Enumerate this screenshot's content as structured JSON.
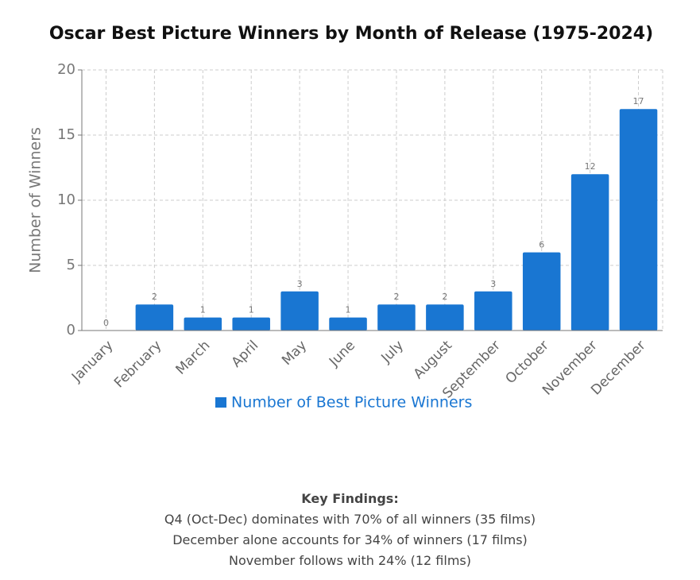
{
  "chart_data": {
    "type": "bar",
    "title": "Oscar Best Picture Winners by Month of Release (1975-2024)",
    "ylabel": "Number of Winners",
    "categories": [
      "January",
      "February",
      "March",
      "April",
      "May",
      "June",
      "July",
      "August",
      "September",
      "October",
      "November",
      "December"
    ],
    "series": [
      {
        "name": "Number of Best Picture Winners",
        "color": "#1976d2",
        "values": [
          0,
          2,
          1,
          1,
          3,
          1,
          2,
          2,
          3,
          6,
          12,
          17
        ]
      }
    ],
    "ylim": [
      0,
      20
    ],
    "yticks": [
      0,
      5,
      10,
      15,
      20
    ],
    "grid": true,
    "legend": "bottom"
  },
  "key_findings": {
    "title": "Key Findings:",
    "items": [
      "Q4 (Oct-Dec) dominates with 70% of all winners (35 films)",
      "December alone accounts for 34% of winners (17 films)",
      "November follows with 24% (12 films)"
    ]
  }
}
